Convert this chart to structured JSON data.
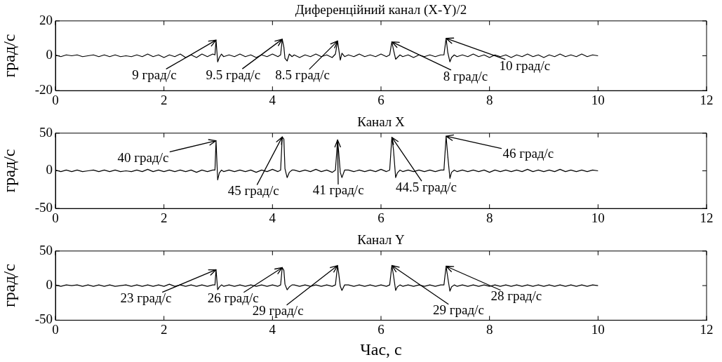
{
  "chart_data": [
    {
      "type": "line",
      "title": "Диференційний канал (X-Y)/2",
      "ylabel": "град/с",
      "xlim": [
        0,
        12
      ],
      "xticks": [
        0,
        2,
        4,
        6,
        8,
        10,
        12
      ],
      "ylim": [
        -20,
        20
      ],
      "yticks": [
        -20,
        0,
        20
      ],
      "x": [
        0,
        0.1,
        0.2,
        0.3,
        0.4,
        0.5,
        0.6,
        0.7,
        0.8,
        0.9,
        1,
        1.1,
        1.2,
        1.3,
        1.4,
        1.5,
        1.6,
        1.7,
        1.8,
        1.9,
        2,
        2.1,
        2.2,
        2.3,
        2.4,
        2.5,
        2.6,
        2.7,
        2.8,
        2.9,
        2.94,
        2.96,
        2.99,
        3.02,
        3.06,
        3.1,
        3.2,
        3.3,
        3.4,
        3.5,
        3.6,
        3.7,
        3.8,
        3.9,
        4,
        4.1,
        4.15,
        4.18,
        4.21,
        4.23,
        4.27,
        4.31,
        4.36,
        4.4,
        4.5,
        4.6,
        4.7,
        4.8,
        4.9,
        5,
        5.1,
        5.16,
        5.2,
        5.22,
        5.25,
        5.28,
        5.33,
        5.4,
        5.5,
        5.6,
        5.7,
        5.8,
        5.9,
        6,
        6.1,
        6.16,
        6.2,
        6.23,
        6.27,
        6.3,
        6.35,
        6.4,
        6.5,
        6.6,
        6.7,
        6.8,
        6.9,
        7,
        7.1,
        7.16,
        7.2,
        7.23,
        7.27,
        7.3,
        7.35,
        7.4,
        7.5,
        7.6,
        7.7,
        7.8,
        7.9,
        8,
        8.1,
        8.2,
        8.3,
        8.4,
        8.5,
        8.6,
        8.7,
        8.8,
        8.9,
        9,
        9.1,
        9.2,
        9.3,
        9.4,
        9.5,
        9.6,
        9.7,
        9.8,
        9.9,
        10
      ],
      "series": [
        {
          "color": "#000000",
          "values": [
            0.5,
            -0.5,
            0.5,
            0,
            0.5,
            -0.5,
            0,
            0.5,
            -0.5,
            0.5,
            -0.5,
            0.5,
            -0.5,
            0,
            -0.5,
            0.5,
            -0.5,
            1,
            -0.5,
            0.5,
            -1,
            0.5,
            -0.5,
            1,
            -1,
            0.5,
            -1,
            1,
            -0.5,
            1,
            0.5,
            9,
            -3.5,
            -1,
            1,
            -0.5,
            0.5,
            -0.5,
            1,
            -0.5,
            0.5,
            -1,
            0.5,
            -0.5,
            1,
            -0.5,
            0.5,
            9.5,
            5,
            -1.5,
            -3,
            1,
            -0.5,
            0.5,
            -1,
            0.5,
            -0.5,
            1,
            -0.5,
            0.5,
            -1,
            1,
            8.5,
            4,
            -2.5,
            1.5,
            -0.5,
            0.5,
            -0.5,
            1,
            -0.5,
            0.5,
            -0.5,
            1,
            -0.5,
            0.5,
            8,
            3.5,
            -2,
            -1,
            0.5,
            -0.5,
            0.5,
            -1,
            0.5,
            -0.5,
            0.5,
            -0.5,
            0.5,
            0.5,
            10,
            2,
            -3.5,
            -1,
            0.5,
            -0.5,
            0.5,
            -0.5,
            1,
            -0.5,
            0.5,
            -1,
            0.5,
            -0.5,
            0.5,
            -1,
            0.5,
            -0.5,
            1,
            -0.5,
            0.5,
            -1,
            0.5,
            -0.5,
            1,
            -0.5,
            0.5,
            -0.5,
            1,
            -0.5,
            0.5,
            0
          ]
        }
      ],
      "annotations": [
        {
          "text": "9 град/с",
          "x": 2.96,
          "y": 9
        },
        {
          "text": "9.5 град/с",
          "x": 4.18,
          "y": 9.5
        },
        {
          "text": "8.5 град/с",
          "x": 5.2,
          "y": 8.5
        },
        {
          "text": "8 град/с",
          "x": 6.2,
          "y": 8
        },
        {
          "text": "10 град/с",
          "x": 7.2,
          "y": 10
        }
      ]
    },
    {
      "type": "line",
      "title": "Канал X",
      "ylabel": "град/с",
      "xlim": [
        0,
        12
      ],
      "xticks": [
        0,
        2,
        4,
        6,
        8,
        10,
        12
      ],
      "ylim": [
        -50,
        50
      ],
      "yticks": [
        -50,
        0,
        50
      ],
      "x": [
        0,
        0.1,
        0.2,
        0.3,
        0.4,
        0.5,
        0.6,
        0.7,
        0.8,
        0.9,
        1,
        1.1,
        1.2,
        1.3,
        1.4,
        1.5,
        1.6,
        1.7,
        1.8,
        1.9,
        2,
        2.1,
        2.2,
        2.3,
        2.4,
        2.5,
        2.6,
        2.7,
        2.8,
        2.9,
        2.94,
        2.96,
        2.99,
        3.02,
        3.06,
        3.1,
        3.2,
        3.3,
        3.4,
        3.5,
        3.6,
        3.7,
        3.8,
        3.9,
        4,
        4.1,
        4.15,
        4.18,
        4.21,
        4.23,
        4.27,
        4.31,
        4.36,
        4.4,
        4.5,
        4.6,
        4.7,
        4.8,
        4.9,
        5,
        5.1,
        5.16,
        5.2,
        5.22,
        5.25,
        5.28,
        5.33,
        5.4,
        5.5,
        5.6,
        5.7,
        5.8,
        5.9,
        6,
        6.1,
        6.16,
        6.2,
        6.23,
        6.27,
        6.3,
        6.35,
        6.4,
        6.5,
        6.6,
        6.7,
        6.8,
        6.9,
        7,
        7.1,
        7.16,
        7.2,
        7.23,
        7.27,
        7.3,
        7.35,
        7.4,
        7.5,
        7.6,
        7.7,
        7.8,
        7.9,
        8,
        8.1,
        8.2,
        8.3,
        8.4,
        8.5,
        8.6,
        8.7,
        8.8,
        8.9,
        9,
        9.1,
        9.2,
        9.3,
        9.4,
        9.5,
        9.6,
        9.7,
        9.8,
        9.9,
        10
      ],
      "series": [
        {
          "color": "#000000",
          "values": [
            1,
            -1,
            1,
            -1,
            1,
            -1,
            0,
            1,
            -1,
            1,
            -1,
            1,
            -1,
            0,
            -1,
            1,
            -1,
            2,
            -1,
            1,
            -1,
            1,
            -1,
            1,
            -1,
            1,
            -2,
            1,
            -1,
            1,
            1,
            40,
            -12,
            -3,
            1,
            -1,
            1,
            -1,
            1,
            -1,
            1,
            -2,
            1,
            -1,
            2,
            -1,
            1,
            45,
            42,
            3,
            -9,
            -2,
            1,
            1,
            -1,
            1,
            -1,
            2,
            -1,
            1,
            -2,
            1,
            41,
            25,
            -2,
            -9,
            1,
            1,
            -1,
            1,
            -1,
            1,
            -1,
            2,
            -1,
            1,
            44.5,
            28,
            -9,
            -3,
            1,
            -1,
            1,
            -1,
            1,
            -1,
            1,
            -1,
            1,
            1,
            46,
            20,
            -10,
            -2,
            1,
            -1,
            1,
            -1,
            1,
            -1,
            1,
            -2,
            1,
            -1,
            1,
            -1,
            1,
            -1,
            2,
            -1,
            1,
            -1,
            1,
            -1,
            2,
            -1,
            1,
            -1,
            1,
            -1,
            1,
            0
          ]
        }
      ],
      "annotations": [
        {
          "text": "40 град/с",
          "x": 2.96,
          "y": 40
        },
        {
          "text": "45 град/с",
          "x": 4.18,
          "y": 45
        },
        {
          "text": "41 град/с",
          "x": 5.2,
          "y": 41
        },
        {
          "text": "44.5 град/с",
          "x": 6.2,
          "y": 44.5
        },
        {
          "text": "46 град/с",
          "x": 7.2,
          "y": 46
        }
      ]
    },
    {
      "type": "line",
      "title": "Канал Y",
      "xlabel": "Час, с",
      "ylabel": "град/с",
      "xlim": [
        0,
        12
      ],
      "xticks": [
        0,
        2,
        4,
        6,
        8,
        10,
        12
      ],
      "ylim": [
        -50,
        50
      ],
      "yticks": [
        -50,
        0,
        50
      ],
      "x": [
        0,
        0.1,
        0.2,
        0.3,
        0.4,
        0.5,
        0.6,
        0.7,
        0.8,
        0.9,
        1,
        1.1,
        1.2,
        1.3,
        1.4,
        1.5,
        1.6,
        1.7,
        1.8,
        1.9,
        2,
        2.1,
        2.2,
        2.3,
        2.4,
        2.5,
        2.6,
        2.7,
        2.8,
        2.9,
        2.94,
        2.96,
        2.99,
        3.02,
        3.06,
        3.1,
        3.2,
        3.3,
        3.4,
        3.5,
        3.6,
        3.7,
        3.8,
        3.9,
        4,
        4.1,
        4.15,
        4.18,
        4.21,
        4.23,
        4.27,
        4.31,
        4.36,
        4.4,
        4.5,
        4.6,
        4.7,
        4.8,
        4.9,
        5,
        5.1,
        5.16,
        5.2,
        5.22,
        5.25,
        5.28,
        5.33,
        5.4,
        5.5,
        5.6,
        5.7,
        5.8,
        5.9,
        6,
        6.1,
        6.16,
        6.2,
        6.23,
        6.27,
        6.3,
        6.35,
        6.4,
        6.5,
        6.6,
        6.7,
        6.8,
        6.9,
        7,
        7.1,
        7.16,
        7.2,
        7.23,
        7.27,
        7.3,
        7.35,
        7.4,
        7.5,
        7.6,
        7.7,
        7.8,
        7.9,
        8,
        8.1,
        8.2,
        8.3,
        8.4,
        8.5,
        8.6,
        8.7,
        8.8,
        8.9,
        9,
        9.1,
        9.2,
        9.3,
        9.4,
        9.5,
        9.6,
        9.7,
        9.8,
        9.9,
        10
      ],
      "series": [
        {
          "color": "#000000",
          "values": [
            1,
            -1,
            1,
            0,
            1,
            -1,
            1,
            -1,
            1,
            -1,
            1,
            -1,
            0,
            1,
            -1,
            1,
            -1,
            1,
            -1,
            1,
            -1,
            2,
            -1,
            1,
            -1,
            1,
            -1,
            1,
            -1,
            1,
            1,
            23,
            -6,
            -2,
            1,
            -1,
            1,
            -1,
            1,
            -1,
            1,
            -1,
            1,
            -1,
            1,
            -1,
            1,
            26,
            22,
            2,
            -6,
            -2,
            1,
            1,
            -1,
            1,
            -1,
            1,
            -1,
            1,
            -1,
            1,
            29,
            18,
            -1,
            -7,
            1,
            1,
            -1,
            1,
            -1,
            1,
            -1,
            1,
            -1,
            1,
            29,
            15,
            -7,
            -2,
            1,
            -1,
            1,
            -1,
            1,
            -1,
            1,
            -1,
            1,
            1,
            28,
            12,
            -8,
            -2,
            1,
            -1,
            1,
            -1,
            1,
            -1,
            1,
            -1,
            1,
            -1,
            1,
            -1,
            1,
            -1,
            1,
            -1,
            1,
            -1,
            1,
            -1,
            1,
            -1,
            1,
            -1,
            1,
            -1,
            1,
            0
          ]
        }
      ],
      "annotations": [
        {
          "text": "23 град/с",
          "x": 2.96,
          "y": 23
        },
        {
          "text": "26 град/с",
          "x": 4.18,
          "y": 26
        },
        {
          "text": "29 град/с",
          "x": 5.2,
          "y": 29
        },
        {
          "text": "29 град/с",
          "x": 6.2,
          "y": 29
        },
        {
          "text": "28 град/с",
          "x": 7.2,
          "y": 28
        }
      ]
    }
  ]
}
